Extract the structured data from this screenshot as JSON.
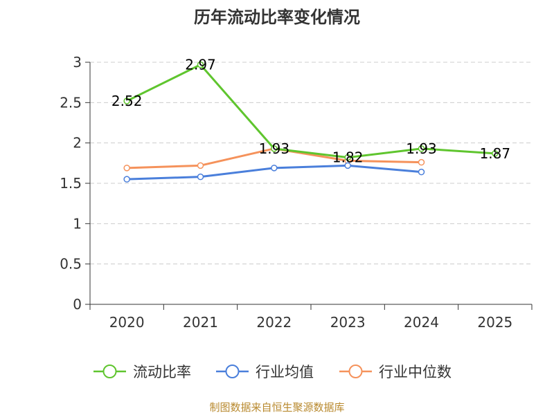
{
  "chart_data": {
    "type": "line",
    "title": "历年流动比率变化情况",
    "xlabel": "",
    "ylabel": "",
    "categories": [
      "2020",
      "2021",
      "2022",
      "2023",
      "2024",
      "2025"
    ],
    "ylim": [
      0,
      3
    ],
    "yticks": [
      "0",
      "0.5",
      "1",
      "1.5",
      "2",
      "2.5",
      "3"
    ],
    "grid": true,
    "legend_position": "bottom",
    "series": [
      {
        "name": "流动比率",
        "color": "#5fc52e",
        "values": [
          2.52,
          2.97,
          1.93,
          1.82,
          1.93,
          1.87
        ],
        "labels": [
          "2.52",
          "2.97",
          "1.93",
          "1.82",
          "1.93",
          "1.87"
        ]
      },
      {
        "name": "行业均值",
        "color": "#4a7fdb",
        "values": [
          1.55,
          1.58,
          1.69,
          1.72,
          1.64,
          null
        ]
      },
      {
        "name": "行业中位数",
        "color": "#f5925b",
        "values": [
          1.69,
          1.72,
          1.93,
          1.78,
          1.76,
          null
        ]
      }
    ],
    "source": "制图数据来自恒生聚源数据库"
  }
}
